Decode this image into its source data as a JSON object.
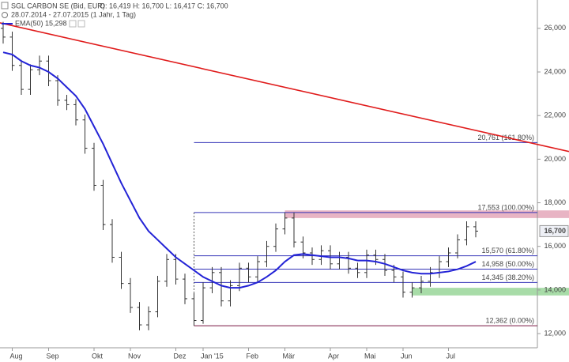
{
  "chart_data": {
    "type": "ohlc",
    "title": "SGL CARBON SE (Bid, EUR)",
    "quote": "O: 16,419   H: 16,700   L: 16,417   C: 16,700",
    "subtitle": "28.07.2014 - 27.07.2015 (1 Jahr, 1 Tag)",
    "categories": [
      null,
      "Aug",
      null,
      null,
      null,
      "Sep",
      null,
      null,
      null,
      null,
      "Okt",
      null,
      null,
      null,
      "Nov",
      null,
      null,
      null,
      null,
      "Dez",
      null,
      null,
      "Jan '15",
      null,
      null,
      null,
      null,
      "Feb",
      null,
      null,
      null,
      "Mär",
      null,
      null,
      null,
      null,
      "Apr",
      null,
      null,
      null,
      "Mai",
      null,
      null,
      null,
      "Jun",
      null,
      null,
      null,
      null,
      "Jul",
      null,
      null,
      null
    ],
    "open": [
      26000,
      25600,
      24300,
      23200,
      24100,
      24500,
      23600,
      22700,
      22500,
      21800,
      20500,
      18800,
      17000,
      15500,
      14300,
      13200,
      12400,
      13000,
      14400,
      15400,
      14500,
      13600,
      12600,
      14100,
      14800,
      13500,
      14200,
      15000,
      14600,
      15300,
      16000,
      16800,
      17300,
      16200,
      15700,
      15400,
      15800,
      15200,
      15500,
      15000,
      14800,
      15600,
      15400,
      14900,
      14600,
      13900,
      14100,
      14400,
      14800,
      15300,
      15700,
      16300,
      16900
    ],
    "high": [
      26300,
      25850,
      24550,
      24350,
      24750,
      24750,
      23850,
      22950,
      22750,
      22050,
      20750,
      19050,
      17250,
      15750,
      14550,
      13450,
      13250,
      14650,
      15650,
      15650,
      14750,
      13850,
      14350,
      15050,
      15050,
      14450,
      15250,
      15250,
      15550,
      16250,
      17050,
      17553,
      17550,
      16450,
      15950,
      16050,
      16050,
      15750,
      15750,
      15250,
      15850,
      15850,
      15650,
      15150,
      14850,
      14350,
      14650,
      15050,
      15550,
      15950,
      16550,
      17150,
      17150
    ],
    "low": [
      25300,
      24050,
      22950,
      22950,
      23850,
      23350,
      22450,
      22250,
      21550,
      20250,
      18550,
      16750,
      15250,
      14050,
      12950,
      12150,
      12150,
      12750,
      14150,
      14250,
      13350,
      12362,
      12450,
      13850,
      13250,
      13250,
      13950,
      14350,
      14350,
      15050,
      15750,
      16550,
      15950,
      15450,
      15150,
      15150,
      14950,
      14950,
      14750,
      14550,
      14550,
      15150,
      14650,
      14350,
      13650,
      13650,
      13850,
      14150,
      14550,
      15050,
      15450,
      16050,
      16417
    ],
    "close": [
      25600,
      24300,
      23200,
      24100,
      24500,
      23600,
      22700,
      22500,
      21800,
      20500,
      18800,
      17000,
      15500,
      14300,
      13200,
      12400,
      13000,
      14400,
      15400,
      14500,
      13600,
      12600,
      14100,
      14800,
      13500,
      14200,
      15000,
      14600,
      15300,
      16000,
      16800,
      17300,
      16200,
      15700,
      15400,
      15800,
      15200,
      15500,
      15000,
      14800,
      15600,
      15400,
      14900,
      14600,
      13900,
      14100,
      14400,
      14800,
      15300,
      15700,
      16300,
      16900,
      16700
    ],
    "color": "#333333",
    "indicator": {
      "name": "EMA(50)",
      "value_label": "15,298",
      "color": "#2323d6",
      "values": [
        24900,
        24800,
        24500,
        24300,
        24200,
        24000,
        23700,
        23300,
        22900,
        22300,
        21500,
        20700,
        19800,
        18900,
        18100,
        17300,
        16700,
        16300,
        15900,
        15500,
        15200,
        14900,
        14600,
        14400,
        14200,
        14100,
        14100,
        14200,
        14350,
        14600,
        14900,
        15300,
        15600,
        15650,
        15600,
        15550,
        15500,
        15500,
        15450,
        15350,
        15350,
        15300,
        15200,
        15050,
        14900,
        14800,
        14750,
        14750,
        14800,
        14850,
        14950,
        15100,
        15298
      ]
    },
    "trendline": {
      "color": "#e01b1b",
      "values": [
        26250,
        20350
      ]
    },
    "levels_start": 21,
    "levels": [
      {
        "value": 20761,
        "label": "20,761 (161.80%)",
        "color": "#3434b8"
      },
      {
        "value": 17553,
        "label": "17,553 (100.00%)",
        "color": "#3434b8"
      },
      {
        "value": 15570,
        "label": "15,570 (61.80%)",
        "color": "#3434b8"
      },
      {
        "value": 14958,
        "label": "14,958 (50.00%)",
        "color": "#3434b8"
      },
      {
        "value": 14345,
        "label": "14,345 (38.20%)",
        "color": "#3434b8"
      },
      {
        "value": 12362,
        "label": "12,362 (0.00%)",
        "color": "#7a1840"
      }
    ],
    "zones": [
      {
        "start": 31,
        "low": 17300,
        "high": 17650,
        "color": "#e8b4c4"
      },
      {
        "start": 45,
        "low": 13750,
        "high": 14100,
        "color": "#a8dca8"
      }
    ],
    "last": {
      "value": 16700,
      "label": "16,700"
    },
    "ylim": [
      11350,
      27300
    ],
    "yticks": [
      {
        "value": 12000,
        "label": "12,000"
      },
      {
        "value": 14000,
        "label": "14,000"
      },
      {
        "value": 16000,
        "label": "16,000"
      },
      {
        "value": 18000,
        "label": "18,000"
      },
      {
        "value": 20000,
        "label": "20,000"
      },
      {
        "value": 22000,
        "label": "22,000"
      },
      {
        "value": 24000,
        "label": "24,000"
      },
      {
        "value": 26000,
        "label": "26,000"
      }
    ]
  }
}
